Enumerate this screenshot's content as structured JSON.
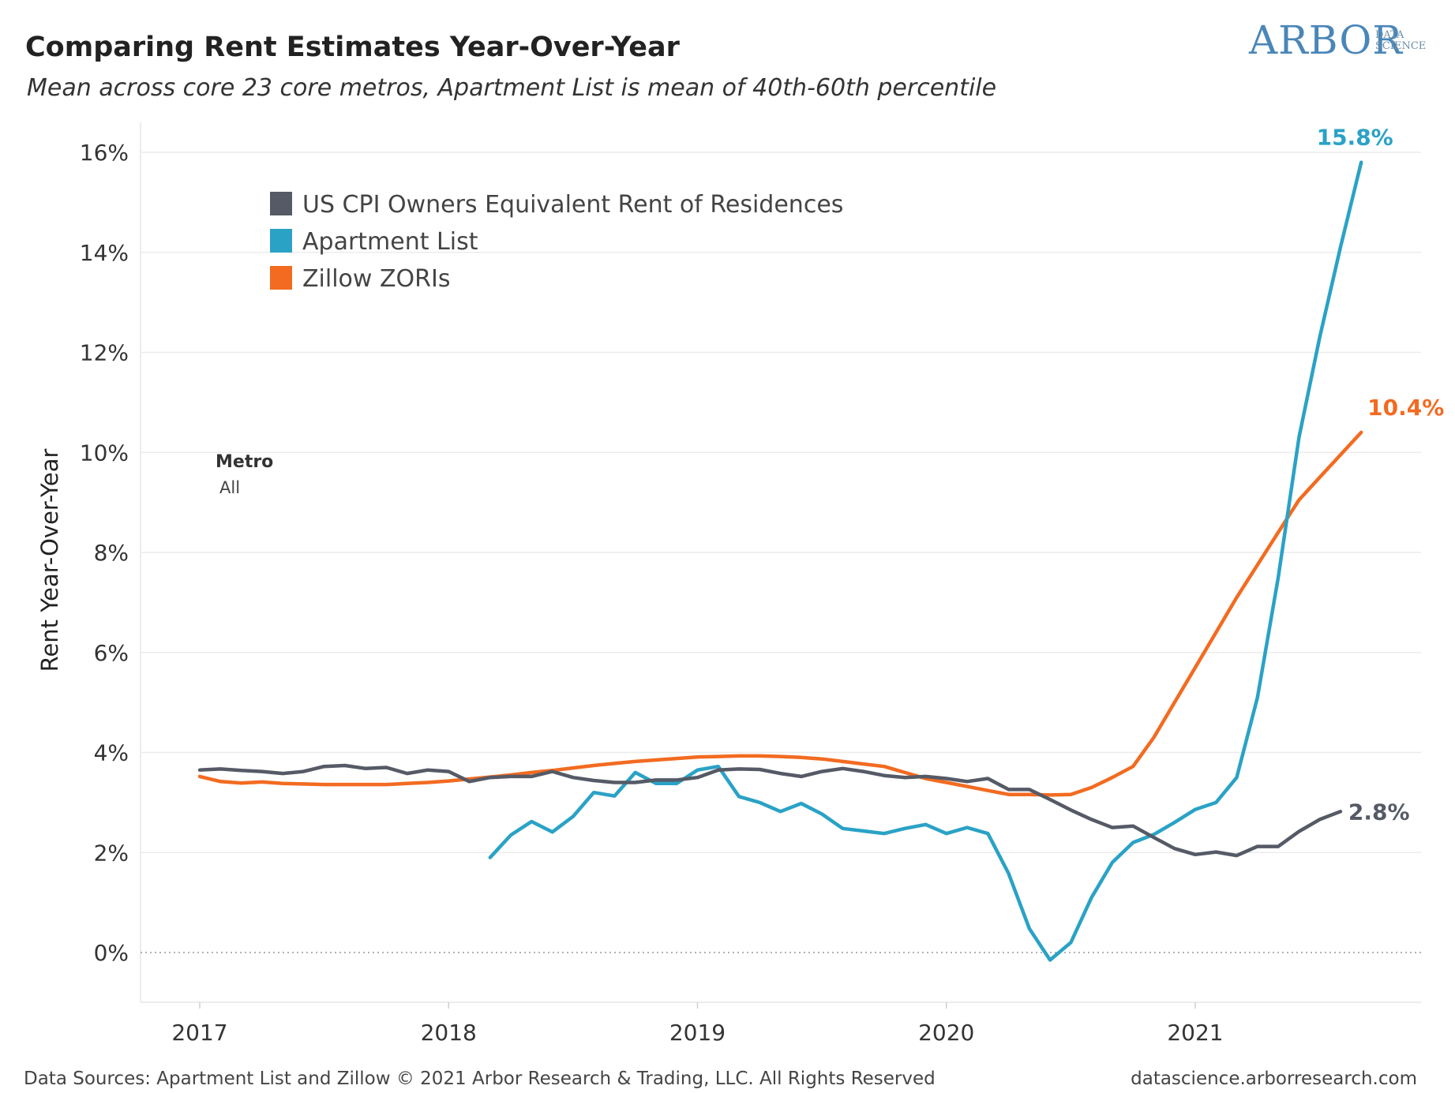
{
  "header": {
    "title": "Comparing Rent Estimates Year-Over-Year",
    "subtitle": "Mean across core 23 core metros, Apartment List is mean of 40th-60th percentile"
  },
  "logo": {
    "main": "ARBOR",
    "sub_line1": "DATA",
    "sub_line2": "SCIENCE"
  },
  "filter": {
    "title": "Metro",
    "value": "All"
  },
  "footer": {
    "left": "Data Sources: Apartment List and Zillow © 2021 Arbor Research & Trading, LLC. All Rights Reserved",
    "right": "datascience.arborresearch.com"
  },
  "chart_data": {
    "type": "line",
    "ylabel": "Rent Year-Over-Year",
    "xlabel": "",
    "ylim": [
      -1,
      16.6
    ],
    "xlim": [
      "2016-09",
      "2021-12"
    ],
    "y_ticks": [
      0,
      2,
      4,
      6,
      8,
      10,
      12,
      14,
      16
    ],
    "y_tick_labels": [
      "0%",
      "2%",
      "4%",
      "6%",
      "8%",
      "10%",
      "12%",
      "14%",
      "16%"
    ],
    "x_ticks": [
      "2017-01",
      "2018-01",
      "2019-01",
      "2020-01",
      "2021-01"
    ],
    "x_tick_labels": [
      "2017",
      "2018",
      "2019",
      "2020",
      "2021"
    ],
    "grid": "horizontal",
    "legend_position": "top-left",
    "series": [
      {
        "name": "US CPI Owners Equivalent Rent of Residences",
        "color": "#555a66",
        "end_label": "2.8%",
        "points": [
          [
            "2017-01",
            3.65
          ],
          [
            "2017-02",
            3.67
          ],
          [
            "2017-03",
            3.64
          ],
          [
            "2017-04",
            3.62
          ],
          [
            "2017-05",
            3.58
          ],
          [
            "2017-06",
            3.62
          ],
          [
            "2017-07",
            3.72
          ],
          [
            "2017-08",
            3.74
          ],
          [
            "2017-09",
            3.68
          ],
          [
            "2017-10",
            3.7
          ],
          [
            "2017-11",
            3.58
          ],
          [
            "2017-12",
            3.65
          ],
          [
            "2018-01",
            3.62
          ],
          [
            "2018-02",
            3.42
          ],
          [
            "2018-03",
            3.5
          ],
          [
            "2018-04",
            3.52
          ],
          [
            "2018-05",
            3.52
          ],
          [
            "2018-06",
            3.62
          ],
          [
            "2018-07",
            3.5
          ],
          [
            "2018-08",
            3.44
          ],
          [
            "2018-09",
            3.4
          ],
          [
            "2018-10",
            3.4
          ],
          [
            "2018-11",
            3.45
          ],
          [
            "2018-12",
            3.45
          ],
          [
            "2019-01",
            3.5
          ],
          [
            "2019-02",
            3.65
          ],
          [
            "2019-03",
            3.67
          ],
          [
            "2019-04",
            3.66
          ],
          [
            "2019-05",
            3.58
          ],
          [
            "2019-06",
            3.52
          ],
          [
            "2019-07",
            3.62
          ],
          [
            "2019-08",
            3.68
          ],
          [
            "2019-09",
            3.62
          ],
          [
            "2019-10",
            3.54
          ],
          [
            "2019-11",
            3.5
          ],
          [
            "2019-12",
            3.52
          ],
          [
            "2020-01",
            3.48
          ],
          [
            "2020-02",
            3.42
          ],
          [
            "2020-03",
            3.48
          ],
          [
            "2020-04",
            3.26
          ],
          [
            "2020-05",
            3.26
          ],
          [
            "2020-06",
            3.06
          ],
          [
            "2020-07",
            2.85
          ],
          [
            "2020-08",
            2.66
          ],
          [
            "2020-09",
            2.5
          ],
          [
            "2020-10",
            2.53
          ],
          [
            "2020-11",
            2.3
          ],
          [
            "2020-12",
            2.08
          ],
          [
            "2021-01",
            1.96
          ],
          [
            "2021-02",
            2.01
          ],
          [
            "2021-03",
            1.94
          ],
          [
            "2021-04",
            2.12
          ],
          [
            "2021-05",
            2.12
          ],
          [
            "2021-06",
            2.42
          ],
          [
            "2021-07",
            2.66
          ],
          [
            "2021-08",
            2.82
          ]
        ]
      },
      {
        "name": "Apartment List",
        "color": "#2aa2c6",
        "end_label": "15.8%",
        "points": [
          [
            "2018-03",
            1.9
          ],
          [
            "2018-04",
            2.35
          ],
          [
            "2018-05",
            2.62
          ],
          [
            "2018-06",
            2.41
          ],
          [
            "2018-07",
            2.72
          ],
          [
            "2018-08",
            3.2
          ],
          [
            "2018-09",
            3.13
          ],
          [
            "2018-10",
            3.6
          ],
          [
            "2018-11",
            3.38
          ],
          [
            "2018-12",
            3.38
          ],
          [
            "2019-01",
            3.65
          ],
          [
            "2019-02",
            3.72
          ],
          [
            "2019-03",
            3.12
          ],
          [
            "2019-04",
            3.0
          ],
          [
            "2019-05",
            2.82
          ],
          [
            "2019-06",
            2.98
          ],
          [
            "2019-07",
            2.77
          ],
          [
            "2019-08",
            2.48
          ],
          [
            "2019-09",
            2.43
          ],
          [
            "2019-10",
            2.38
          ],
          [
            "2019-11",
            2.48
          ],
          [
            "2019-12",
            2.56
          ],
          [
            "2020-01",
            2.38
          ],
          [
            "2020-02",
            2.5
          ],
          [
            "2020-03",
            2.38
          ],
          [
            "2020-04",
            1.58
          ],
          [
            "2020-05",
            0.48
          ],
          [
            "2020-06",
            -0.15
          ],
          [
            "2020-07",
            0.2
          ],
          [
            "2020-08",
            1.1
          ],
          [
            "2020-09",
            1.8
          ],
          [
            "2020-10",
            2.2
          ],
          [
            "2020-11",
            2.36
          ],
          [
            "2020-12",
            2.6
          ],
          [
            "2021-01",
            2.86
          ],
          [
            "2021-02",
            3.0
          ],
          [
            "2021-03",
            3.5
          ],
          [
            "2021-04",
            5.1
          ],
          [
            "2021-05",
            7.5
          ],
          [
            "2021-06",
            10.3
          ],
          [
            "2021-07",
            12.3
          ],
          [
            "2021-08",
            14.1
          ],
          [
            "2021-09",
            15.8
          ]
        ]
      },
      {
        "name": "Zillow ZORIs",
        "color": "#f26b21",
        "end_label": "10.4%",
        "points": [
          [
            "2017-01",
            3.52
          ],
          [
            "2017-02",
            3.42
          ],
          [
            "2017-03",
            3.39
          ],
          [
            "2017-04",
            3.41
          ],
          [
            "2017-05",
            3.38
          ],
          [
            "2017-06",
            3.37
          ],
          [
            "2017-07",
            3.36
          ],
          [
            "2017-08",
            3.36
          ],
          [
            "2017-09",
            3.36
          ],
          [
            "2017-10",
            3.36
          ],
          [
            "2017-11",
            3.38
          ],
          [
            "2017-12",
            3.4
          ],
          [
            "2018-01",
            3.43
          ],
          [
            "2018-02",
            3.47
          ],
          [
            "2018-03",
            3.51
          ],
          [
            "2018-04",
            3.55
          ],
          [
            "2018-05",
            3.6
          ],
          [
            "2018-06",
            3.64
          ],
          [
            "2018-07",
            3.69
          ],
          [
            "2018-08",
            3.74
          ],
          [
            "2018-09",
            3.78
          ],
          [
            "2018-10",
            3.82
          ],
          [
            "2018-11",
            3.85
          ],
          [
            "2018-12",
            3.88
          ],
          [
            "2019-01",
            3.91
          ],
          [
            "2019-02",
            3.92
          ],
          [
            "2019-03",
            3.93
          ],
          [
            "2019-04",
            3.93
          ],
          [
            "2019-05",
            3.92
          ],
          [
            "2019-06",
            3.9
          ],
          [
            "2019-07",
            3.87
          ],
          [
            "2019-08",
            3.82
          ],
          [
            "2019-09",
            3.77
          ],
          [
            "2019-10",
            3.72
          ],
          [
            "2019-11",
            3.6
          ],
          [
            "2019-12",
            3.48
          ],
          [
            "2020-01",
            3.4
          ],
          [
            "2020-02",
            3.32
          ],
          [
            "2020-03",
            3.24
          ],
          [
            "2020-04",
            3.16
          ],
          [
            "2020-05",
            3.16
          ],
          [
            "2020-06",
            3.15
          ],
          [
            "2020-07",
            3.16
          ],
          [
            "2020-08",
            3.3
          ],
          [
            "2020-09",
            3.5
          ],
          [
            "2020-10",
            3.72
          ],
          [
            "2020-11",
            4.3
          ],
          [
            "2020-12",
            5.0
          ],
          [
            "2021-01",
            5.7
          ],
          [
            "2021-02",
            6.4
          ],
          [
            "2021-03",
            7.1
          ],
          [
            "2021-04",
            7.75
          ],
          [
            "2021-05",
            8.4
          ],
          [
            "2021-06",
            9.05
          ],
          [
            "2021-07",
            9.5
          ],
          [
            "2021-08",
            9.95
          ],
          [
            "2021-09",
            10.4
          ]
        ]
      }
    ]
  }
}
